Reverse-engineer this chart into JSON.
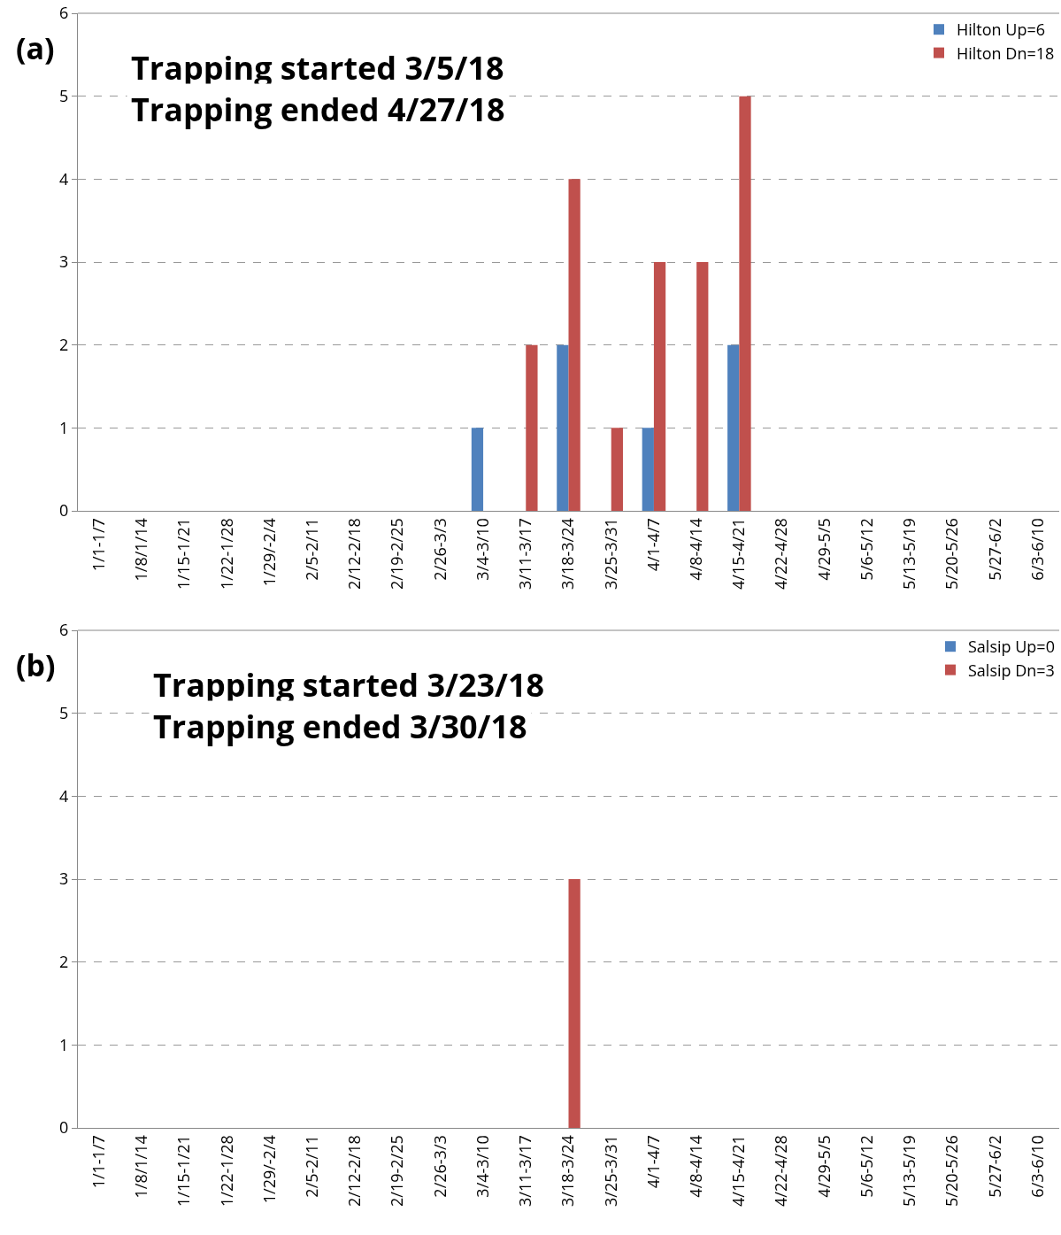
{
  "chart_data": [
    {
      "type": "bar",
      "categories": [
        "1/1-1/7",
        "1/8/1/14",
        "1/15-1/21",
        "1/22-1/28",
        "1/29/-2/4",
        "2/5-2/11",
        "2/12-2/18",
        "2/19-2/25",
        "2/26-3/3",
        "3/4-3/10",
        "3/11-3/17",
        "3/18-3/24",
        "3/25-3/31",
        "4/1-4/7",
        "4/8-4/14",
        "4/15-4/21",
        "4/22-4/28",
        "4/29-5/5",
        "5/6-5/12",
        "5/13-5/19",
        "5/20-5/26",
        "5/27-6/2",
        "6/3-6/10"
      ],
      "series": [
        {
          "name": "Hilton Up=6",
          "color": "#4f81bd",
          "values": [
            0,
            0,
            0,
            0,
            0,
            0,
            0,
            0,
            0,
            1,
            0,
            2,
            0,
            1,
            0,
            2,
            0,
            0,
            0,
            0,
            0,
            0,
            0
          ]
        },
        {
          "name": "Hilton Dn=18",
          "color": "#c0504d",
          "values": [
            0,
            0,
            0,
            0,
            0,
            0,
            0,
            0,
            0,
            0,
            2,
            4,
            1,
            3,
            3,
            5,
            0,
            0,
            0,
            0,
            0,
            0,
            0
          ]
        }
      ],
      "ylim": [
        0,
        6
      ],
      "yticks": [
        0,
        1,
        2,
        3,
        4,
        5,
        6
      ],
      "grid": "y",
      "legend": "top right",
      "annotations": [
        "(a)",
        "Trapping started 3/5/18",
        "Trapping ended 4/27/18"
      ]
    },
    {
      "type": "bar",
      "categories": [
        "1/1-1/7",
        "1/8/1/14",
        "1/15-1/21",
        "1/22-1/28",
        "1/29/-2/4",
        "2/5-2/11",
        "2/12-2/18",
        "2/19-2/25",
        "2/26-3/3",
        "3/4-3/10",
        "3/11-3/17",
        "3/18-3/24",
        "3/25-3/31",
        "4/1-4/7",
        "4/8-4/14",
        "4/15-4/21",
        "4/22-4/28",
        "4/29-5/5",
        "5/6-5/12",
        "5/13-5/19",
        "5/20-5/26",
        "5/27-6/2",
        "6/3-6/10"
      ],
      "series": [
        {
          "name": "Salsip Up=0",
          "color": "#4f81bd",
          "values": [
            0,
            0,
            0,
            0,
            0,
            0,
            0,
            0,
            0,
            0,
            0,
            0,
            0,
            0,
            0,
            0,
            0,
            0,
            0,
            0,
            0,
            0,
            0
          ]
        },
        {
          "name": "Salsip Dn=3",
          "color": "#c0504d",
          "values": [
            0,
            0,
            0,
            0,
            0,
            0,
            0,
            0,
            0,
            0,
            0,
            3,
            0,
            0,
            0,
            0,
            0,
            0,
            0,
            0,
            0,
            0,
            0
          ]
        }
      ],
      "ylim": [
        0,
        6
      ],
      "yticks": [
        0,
        1,
        2,
        3,
        4,
        5,
        6
      ],
      "grid": "y",
      "legend": "top right",
      "annotations": [
        "(b)",
        "Trapping started 3/23/18",
        "Trapping ended 3/30/18"
      ]
    }
  ]
}
